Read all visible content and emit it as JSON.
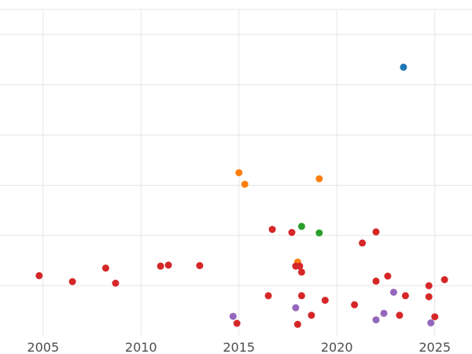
{
  "chart_data": {
    "type": "scatter",
    "title": "",
    "xlabel": "",
    "ylabel": "",
    "grid": true,
    "xlim": [
      2002.8,
      2026.9
    ],
    "ylim": [
      0,
      6.5
    ],
    "x_ticks": [
      2005,
      2010,
      2015,
      2020,
      2025
    ],
    "x_tick_labels": [
      "2005",
      "2010",
      "2015",
      "2020",
      "2025"
    ],
    "y_gridlines": [
      1,
      2,
      3,
      4,
      5,
      6
    ],
    "series": [
      {
        "name": "blue",
        "color": "#1f77b4",
        "points": [
          [
            2023.4,
            5.35
          ]
        ]
      },
      {
        "name": "orange",
        "color": "#ff7f0e",
        "points": [
          [
            2015.0,
            3.25
          ],
          [
            2015.3,
            3.02
          ],
          [
            2019.1,
            3.13
          ],
          [
            2018.0,
            1.47
          ]
        ]
      },
      {
        "name": "green",
        "color": "#2ca02c",
        "points": [
          [
            2018.2,
            2.18
          ],
          [
            2019.1,
            2.05
          ]
        ]
      },
      {
        "name": "red",
        "color": "#d62728",
        "points": [
          [
            2004.8,
            1.2
          ],
          [
            2006.5,
            1.08
          ],
          [
            2008.2,
            1.35
          ],
          [
            2008.7,
            1.05
          ],
          [
            2011.0,
            1.39
          ],
          [
            2011.4,
            1.41
          ],
          [
            2013.0,
            1.4
          ],
          [
            2014.9,
            0.25
          ],
          [
            2016.5,
            0.8
          ],
          [
            2016.7,
            2.12
          ],
          [
            2017.7,
            2.06
          ],
          [
            2017.9,
            1.39
          ],
          [
            2018.1,
            1.39
          ],
          [
            2018.2,
            0.8
          ],
          [
            2018.2,
            1.27
          ],
          [
            2018.0,
            0.23
          ],
          [
            2018.7,
            0.41
          ],
          [
            2019.4,
            0.71
          ],
          [
            2020.9,
            0.62
          ],
          [
            2021.3,
            1.85
          ],
          [
            2022.0,
            2.07
          ],
          [
            2022.0,
            1.09
          ],
          [
            2022.6,
            1.19
          ],
          [
            2023.2,
            0.41
          ],
          [
            2023.5,
            0.8
          ],
          [
            2024.7,
            1.0
          ],
          [
            2024.7,
            0.78
          ],
          [
            2025.0,
            0.38
          ],
          [
            2025.5,
            1.12
          ]
        ]
      },
      {
        "name": "purple",
        "color": "#9467bd",
        "points": [
          [
            2014.7,
            0.39
          ],
          [
            2017.9,
            0.56
          ],
          [
            2022.0,
            0.32
          ],
          [
            2022.4,
            0.45
          ],
          [
            2022.9,
            0.87
          ],
          [
            2024.8,
            0.26
          ]
        ]
      }
    ]
  }
}
